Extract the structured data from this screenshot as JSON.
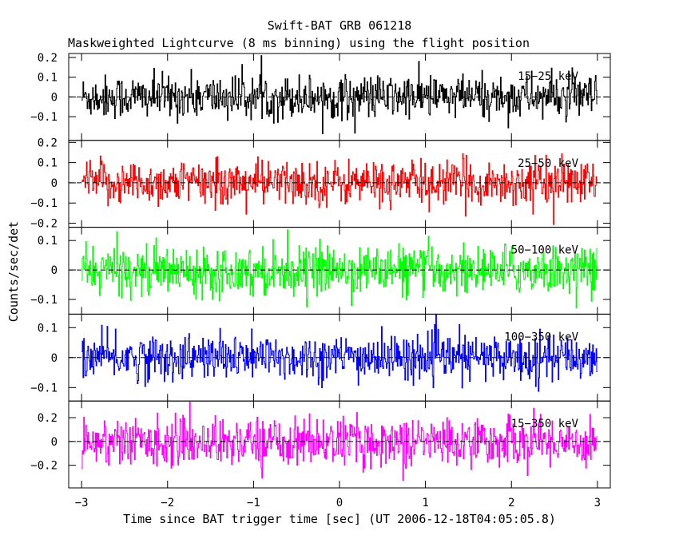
{
  "chart_data": {
    "type": "line",
    "title": "Swift-BAT GRB 061218",
    "subtitle": "Maskweighted Lightcurve (8 ms binning) using the flight position",
    "xlabel": "Time since BAT trigger time [sec] (UT 2006-12-18T04:05:05.8)",
    "ylabel": "Counts/sec/det",
    "xlim": [
      -3.15,
      3.15
    ],
    "x_ticks": [
      {
        "v": -3,
        "label": "−3"
      },
      {
        "v": -2,
        "label": "−2"
      },
      {
        "v": -1,
        "label": "−1"
      },
      {
        "v": 0,
        "label": "0"
      },
      {
        "v": 1,
        "label": "1"
      },
      {
        "v": 2,
        "label": "2"
      },
      {
        "v": 3,
        "label": "3"
      }
    ],
    "x_range": [
      -3.0,
      3.0
    ],
    "bin_size": 0.008,
    "zero_line": true,
    "panels": [
      {
        "label": "15−25 keV",
        "color": "#000000",
        "ylim": [
          -0.22,
          0.22
        ],
        "noise_sigma": 0.055,
        "y_ticks": [
          {
            "v": 0.2,
            "label": "0.2"
          },
          {
            "v": 0.1,
            "label": "0.1"
          },
          {
            "v": 0,
            "label": "0"
          },
          {
            "v": -0.1,
            "label": "−0.1"
          }
        ]
      },
      {
        "label": "25−50 keV",
        "color": "#ff0000",
        "ylim": [
          -0.22,
          0.21
        ],
        "noise_sigma": 0.055,
        "y_ticks": [
          {
            "v": 0.2,
            "label": "0.2"
          },
          {
            "v": 0.1,
            "label": "0.1"
          },
          {
            "v": 0,
            "label": "0"
          },
          {
            "v": -0.1,
            "label": "−0.1"
          },
          {
            "v": -0.2,
            "label": "−0.2"
          }
        ]
      },
      {
        "label": "50−100 keV",
        "color": "#00ff00",
        "ylim": [
          -0.15,
          0.145
        ],
        "noise_sigma": 0.04,
        "y_ticks": [
          {
            "v": 0.1,
            "label": "0.1"
          },
          {
            "v": 0,
            "label": "0"
          },
          {
            "v": -0.1,
            "label": "−0.1"
          }
        ]
      },
      {
        "label": "100−350 keV",
        "color": "#0000ff",
        "ylim": [
          -0.145,
          0.145
        ],
        "noise_sigma": 0.038,
        "y_ticks": [
          {
            "v": 0.1,
            "label": "0.1"
          },
          {
            "v": 0,
            "label": "0"
          },
          {
            "v": -0.1,
            "label": "−0.1"
          }
        ]
      },
      {
        "label": "15−350 keV",
        "color": "#ff00ff",
        "ylim": [
          -0.39,
          0.34
        ],
        "noise_sigma": 0.1,
        "y_ticks": [
          {
            "v": 0.2,
            "label": "0.2"
          },
          {
            "v": 0,
            "label": "0"
          },
          {
            "v": -0.2,
            "label": "−0.2"
          }
        ]
      }
    ]
  }
}
